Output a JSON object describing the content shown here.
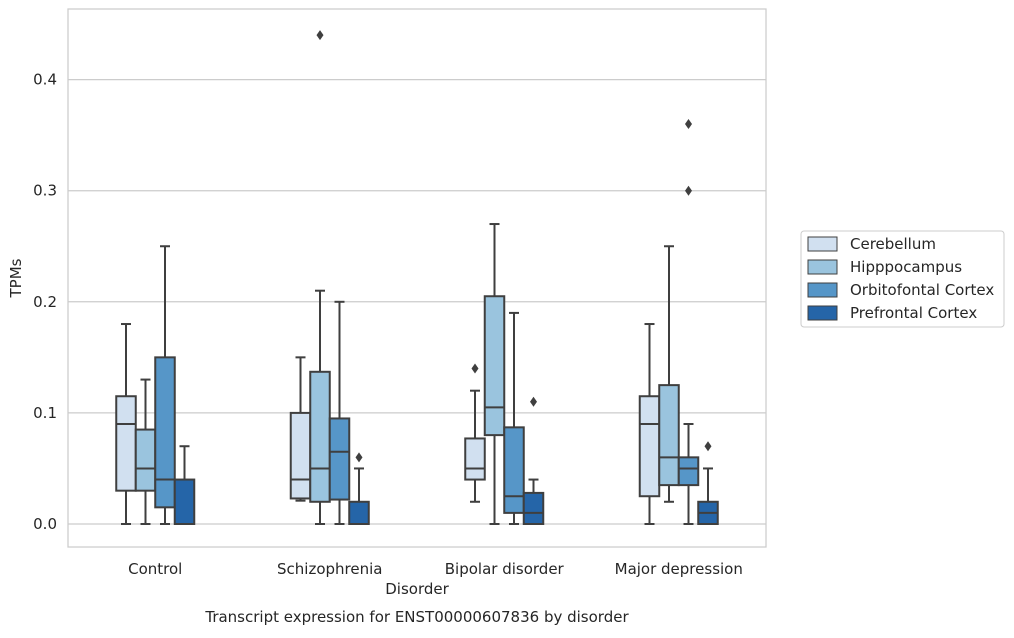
{
  "chart_data": {
    "type": "box",
    "title": "",
    "xlabel": "Disorder",
    "ylabel": "TPMs",
    "caption": "Transcript expression for ENST00000607836 by disorder",
    "ylim": [
      -0.021,
      0.465
    ],
    "yticks": [
      0.0,
      0.1,
      0.2,
      0.3,
      0.4
    ],
    "ytick_labels": [
      "0.0",
      "0.1",
      "0.2",
      "0.3",
      "0.4"
    ],
    "grid": "horizontal",
    "legend_position": "right",
    "categories": [
      "Control",
      "Schizophrenia",
      "Bipolar disorder",
      "Major depression"
    ],
    "series": [
      {
        "name": "Cerebellum",
        "color": "#d1e0f0",
        "boxes": [
          {
            "min": 0.0,
            "q1": 0.03,
            "median": 0.09,
            "q3": 0.115,
            "max": 0.18,
            "outliers": []
          },
          {
            "min": 0.021,
            "q1": 0.023,
            "median": 0.04,
            "q3": 0.1,
            "max": 0.15,
            "outliers": []
          },
          {
            "min": 0.02,
            "q1": 0.04,
            "median": 0.05,
            "q3": 0.077,
            "max": 0.12,
            "outliers": [
              0.14
            ]
          },
          {
            "min": 0.0,
            "q1": 0.025,
            "median": 0.09,
            "q3": 0.115,
            "max": 0.18,
            "outliers": []
          }
        ]
      },
      {
        "name": "Hipppocampus",
        "color": "#9ac4de",
        "boxes": [
          {
            "min": 0.0,
            "q1": 0.03,
            "median": 0.05,
            "q3": 0.085,
            "max": 0.13,
            "outliers": []
          },
          {
            "min": 0.0,
            "q1": 0.02,
            "median": 0.05,
            "q3": 0.137,
            "max": 0.21,
            "outliers": [
              0.44
            ]
          },
          {
            "min": 0.0,
            "q1": 0.08,
            "median": 0.105,
            "q3": 0.205,
            "max": 0.27,
            "outliers": []
          },
          {
            "min": 0.02,
            "q1": 0.035,
            "median": 0.06,
            "q3": 0.125,
            "max": 0.25,
            "outliers": []
          }
        ]
      },
      {
        "name": "Orbitofontal Cortex",
        "color": "#5696c8",
        "boxes": [
          {
            "min": 0.0,
            "q1": 0.015,
            "median": 0.04,
            "q3": 0.15,
            "max": 0.25,
            "outliers": []
          },
          {
            "min": 0.0,
            "q1": 0.022,
            "median": 0.065,
            "q3": 0.095,
            "max": 0.2,
            "outliers": []
          },
          {
            "min": 0.0,
            "q1": 0.01,
            "median": 0.025,
            "q3": 0.087,
            "max": 0.19,
            "outliers": []
          },
          {
            "min": 0.0,
            "q1": 0.035,
            "median": 0.05,
            "q3": 0.06,
            "max": 0.09,
            "outliers": [
              0.3,
              0.36
            ]
          }
        ]
      },
      {
        "name": "Prefrontal Cortex",
        "color": "#2565a8",
        "boxes": [
          {
            "min": 0.0,
            "q1": 0.0,
            "median": 0.0,
            "q3": 0.04,
            "max": 0.07,
            "outliers": []
          },
          {
            "min": 0.0,
            "q1": 0.0,
            "median": 0.0,
            "q3": 0.02,
            "max": 0.05,
            "outliers": [
              0.06
            ]
          },
          {
            "min": 0.0,
            "q1": 0.0,
            "median": 0.01,
            "q3": 0.028,
            "max": 0.04,
            "outliers": [
              0.11
            ]
          },
          {
            "min": 0.0,
            "q1": 0.0,
            "median": 0.01,
            "q3": 0.02,
            "max": 0.05,
            "outliers": [
              0.07
            ]
          }
        ]
      }
    ]
  }
}
